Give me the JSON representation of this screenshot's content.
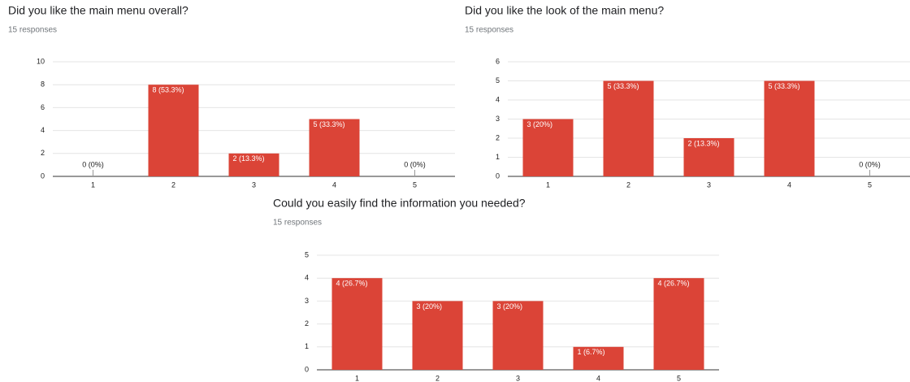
{
  "chart_data": [
    {
      "type": "bar",
      "title": "Did you like the main menu overall?",
      "subtitle": "15 responses",
      "categories": [
        "1",
        "2",
        "3",
        "4",
        "5"
      ],
      "values": [
        0,
        8,
        2,
        5,
        0
      ],
      "value_labels": [
        "0 (0%)",
        "8 (53.3%)",
        "2 (13.3%)",
        "5 (33.3%)",
        "0 (0%)"
      ],
      "color": "#db4437",
      "ylim": [
        0,
        10
      ],
      "yticks": [
        0,
        2,
        4,
        6,
        8,
        10
      ],
      "grid": true
    },
    {
      "type": "bar",
      "title": "Did you like the look of the main menu?",
      "subtitle": "15 responses",
      "categories": [
        "1",
        "2",
        "3",
        "4",
        "5"
      ],
      "values": [
        3,
        5,
        2,
        5,
        0
      ],
      "value_labels": [
        "3 (20%)",
        "5 (33.3%)",
        "2 (13.3%)",
        "5 (33.3%)",
        "0 (0%)"
      ],
      "color": "#db4437",
      "ylim": [
        0,
        6
      ],
      "yticks": [
        0,
        1,
        2,
        3,
        4,
        5,
        6
      ],
      "grid": true
    },
    {
      "type": "bar",
      "title": "Could you easily find the information you needed?",
      "subtitle": "15 responses",
      "categories": [
        "1",
        "2",
        "3",
        "4",
        "5"
      ],
      "values": [
        4,
        3,
        3,
        1,
        4
      ],
      "value_labels": [
        "4 (26.7%)",
        "3 (20%)",
        "3 (20%)",
        "1 (6.7%)",
        "4 (26.7%)"
      ],
      "color": "#db4437",
      "ylim": [
        0,
        5
      ],
      "yticks": [
        0,
        1,
        2,
        3,
        4,
        5
      ],
      "grid": true
    }
  ]
}
